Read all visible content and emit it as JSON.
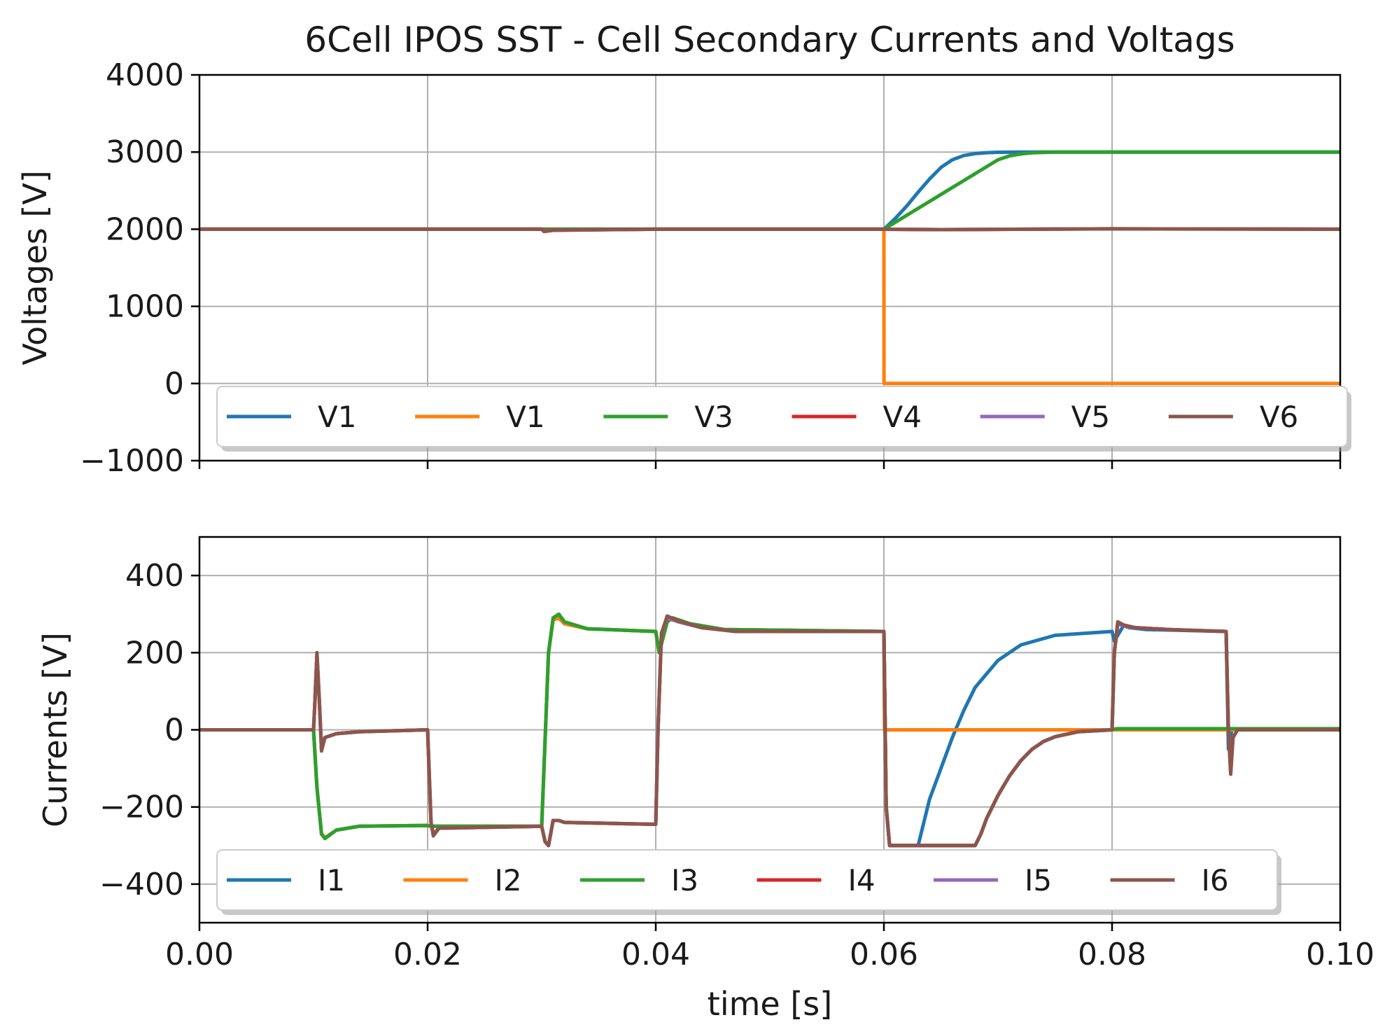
{
  "figure": {
    "title": "6Cell IPOS SST - Cell Secondary Currents and Voltags"
  },
  "chart_data": [
    {
      "type": "line",
      "id": "voltages",
      "ylabel": "Voltages [V]",
      "xlabel": "",
      "xlim": [
        0,
        0.1
      ],
      "ylim": [
        -1000,
        4000
      ],
      "xticks": [
        0,
        0.02,
        0.04,
        0.06,
        0.08,
        0.1
      ],
      "yticks": [
        -1000,
        0,
        1000,
        2000,
        3000,
        4000
      ],
      "ytick_labels": [
        "−1000",
        "0",
        "1000",
        "2000",
        "3000",
        "4000"
      ],
      "grid": true,
      "legend_position": "lower-center",
      "series": [
        {
          "name": "V1",
          "color": "#1f77b4",
          "x": [
            0,
            0.03,
            0.06,
            0.061,
            0.062,
            0.063,
            0.064,
            0.065,
            0.066,
            0.067,
            0.068,
            0.069,
            0.07,
            0.072,
            0.075,
            0.08,
            0.1
          ],
          "values": [
            2000,
            2000,
            2000,
            2140,
            2300,
            2480,
            2650,
            2800,
            2900,
            2955,
            2980,
            2992,
            2997,
            3000,
            3000,
            3000,
            3000
          ]
        },
        {
          "name": "V1",
          "color": "#ff7f0e",
          "x": [
            0,
            0.03,
            0.06,
            0.06001,
            0.1
          ],
          "values": [
            2000,
            2000,
            2000,
            0,
            0
          ]
        },
        {
          "name": "V3",
          "color": "#2ca02c",
          "x": [
            0,
            0.03,
            0.06,
            0.061,
            0.062,
            0.063,
            0.064,
            0.065,
            0.066,
            0.067,
            0.068,
            0.069,
            0.07,
            0.071,
            0.072,
            0.073,
            0.075,
            0.08,
            0.1
          ],
          "values": [
            2000,
            2000,
            2000,
            2090,
            2180,
            2270,
            2360,
            2450,
            2540,
            2630,
            2720,
            2810,
            2900,
            2950,
            2975,
            2990,
            3000,
            3000,
            3000
          ]
        },
        {
          "name": "V4",
          "color": "#d62728",
          "x": [
            0,
            0.03,
            0.0302,
            0.031,
            0.04,
            0.06,
            0.065,
            0.08,
            0.1
          ],
          "values": [
            2000,
            2000,
            1970,
            1985,
            2000,
            2000,
            1995,
            2005,
            2000
          ]
        },
        {
          "name": "V5",
          "color": "#9467bd",
          "x": [
            0,
            0.03,
            0.0302,
            0.031,
            0.04,
            0.06,
            0.065,
            0.08,
            0.1
          ],
          "values": [
            2000,
            2000,
            1975,
            1988,
            2000,
            2000,
            1995,
            2005,
            2000
          ]
        },
        {
          "name": "V6",
          "color": "#8c564b",
          "x": [
            0,
            0.03,
            0.0302,
            0.031,
            0.04,
            0.06,
            0.065,
            0.08,
            0.1
          ],
          "values": [
            2000,
            2000,
            1980,
            1990,
            2000,
            2000,
            1995,
            2005,
            2000
          ]
        }
      ]
    },
    {
      "type": "line",
      "id": "currents",
      "ylabel": "Currents [V]",
      "xlabel": "time [s]",
      "xlim": [
        0,
        0.1
      ],
      "ylim": [
        -500,
        500
      ],
      "xticks": [
        0,
        0.02,
        0.04,
        0.06,
        0.08,
        0.1
      ],
      "xtick_labels": [
        "0.00",
        "0.02",
        "0.04",
        "0.06",
        "0.08",
        "0.10"
      ],
      "yticks": [
        -400,
        -200,
        0,
        200,
        400
      ],
      "ytick_labels": [
        "−400",
        "−200",
        "0",
        "200",
        "400"
      ],
      "grid": true,
      "legend_position": "lower-center",
      "series": [
        {
          "name": "I1",
          "color": "#1f77b4",
          "x": [
            0,
            0.01,
            0.0103,
            0.0107,
            0.011,
            0.012,
            0.014,
            0.02,
            0.0203,
            0.021,
            0.03,
            0.0302,
            0.0306,
            0.031,
            0.0315,
            0.032,
            0.034,
            0.04,
            0.0403,
            0.041,
            0.0415,
            0.043,
            0.046,
            0.06,
            0.0602,
            0.0605,
            0.063,
            0.0635,
            0.064,
            0.065,
            0.066,
            0.067,
            0.068,
            0.07,
            0.072,
            0.075,
            0.08,
            0.0802,
            0.081,
            0.0815,
            0.083,
            0.09,
            0.0902,
            0.0905,
            0.091,
            0.1
          ],
          "values": [
            0,
            0,
            -150,
            -270,
            -280,
            -260,
            -250,
            -248,
            -250,
            -250,
            -250,
            -100,
            200,
            285,
            290,
            275,
            262,
            255,
            200,
            280,
            290,
            275,
            260,
            255,
            -200,
            -300,
            -300,
            -240,
            -180,
            -100,
            -20,
            50,
            110,
            180,
            220,
            245,
            255,
            230,
            270,
            265,
            260,
            255,
            -50,
            0,
            0,
            0
          ]
        },
        {
          "name": "I2",
          "color": "#ff7f0e",
          "x": [
            0,
            0.01,
            0.0103,
            0.0107,
            0.011,
            0.012,
            0.014,
            0.02,
            0.0203,
            0.021,
            0.03,
            0.0302,
            0.0306,
            0.031,
            0.0315,
            0.032,
            0.034,
            0.04,
            0.0403,
            0.041,
            0.0415,
            0.043,
            0.046,
            0.06,
            0.06005,
            0.1
          ],
          "values": [
            0,
            0,
            -150,
            -270,
            -280,
            -260,
            -250,
            -248,
            -250,
            -250,
            -250,
            -100,
            200,
            285,
            290,
            275,
            262,
            255,
            200,
            280,
            290,
            275,
            260,
            255,
            0,
            0
          ]
        },
        {
          "name": "I3",
          "color": "#2ca02c",
          "x": [
            0,
            0.01,
            0.0103,
            0.0107,
            0.011,
            0.012,
            0.014,
            0.02,
            0.0203,
            0.021,
            0.03,
            0.0302,
            0.0306,
            0.031,
            0.0315,
            0.032,
            0.034,
            0.04,
            0.0403,
            0.041,
            0.0415,
            0.043,
            0.046,
            0.06,
            0.0602,
            0.0605,
            0.068,
            0.0685,
            0.069,
            0.07,
            0.071,
            0.072,
            0.073,
            0.074,
            0.075,
            0.077,
            0.08,
            0.0802,
            0.0805,
            0.081,
            0.09,
            0.1
          ],
          "values": [
            0,
            0,
            -150,
            -270,
            -282,
            -260,
            -250,
            -248,
            -250,
            -250,
            -250,
            -100,
            200,
            290,
            300,
            280,
            262,
            255,
            200,
            280,
            290,
            275,
            260,
            255,
            -200,
            -300,
            -300,
            -270,
            -230,
            -170,
            -120,
            -80,
            -50,
            -30,
            -18,
            -5,
            0,
            2,
            3,
            3,
            3,
            3
          ]
        },
        {
          "name": "I4",
          "color": "#d62728",
          "x": [
            0,
            0.01,
            0.0101,
            0.0103,
            0.0105,
            0.0107,
            0.011,
            0.012,
            0.014,
            0.02,
            0.0203,
            0.0205,
            0.021,
            0.03,
            0.0303,
            0.0306,
            0.031,
            0.0315,
            0.032,
            0.04,
            0.0402,
            0.0405,
            0.041,
            0.042,
            0.044,
            0.047,
            0.06,
            0.0602,
            0.0605,
            0.068,
            0.0685,
            0.069,
            0.07,
            0.071,
            0.072,
            0.073,
            0.074,
            0.075,
            0.077,
            0.08,
            0.0802,
            0.0805,
            0.081,
            0.082,
            0.085,
            0.09,
            0.0902,
            0.0904,
            0.0906,
            0.091,
            0.1
          ],
          "values": [
            0,
            0,
            60,
            195,
            80,
            -50,
            -20,
            -10,
            -5,
            0,
            -240,
            -270,
            -255,
            -250,
            -290,
            -300,
            -235,
            -235,
            -240,
            -245,
            0,
            250,
            290,
            280,
            265,
            255,
            255,
            -200,
            -300,
            -300,
            -270,
            -230,
            -170,
            -120,
            -80,
            -50,
            -30,
            -18,
            -5,
            0,
            200,
            275,
            270,
            265,
            260,
            255,
            0,
            -110,
            -20,
            0,
            0
          ]
        },
        {
          "name": "I5",
          "color": "#9467bd",
          "x": [
            0,
            0.01,
            0.0101,
            0.0103,
            0.0105,
            0.0107,
            0.011,
            0.012,
            0.014,
            0.02,
            0.0203,
            0.0205,
            0.021,
            0.03,
            0.0303,
            0.0306,
            0.031,
            0.0315,
            0.032,
            0.04,
            0.0402,
            0.0405,
            0.041,
            0.042,
            0.044,
            0.047,
            0.06,
            0.0602,
            0.0605,
            0.068,
            0.0685,
            0.069,
            0.07,
            0.071,
            0.072,
            0.073,
            0.074,
            0.075,
            0.077,
            0.08,
            0.0802,
            0.0805,
            0.081,
            0.082,
            0.085,
            0.09,
            0.0902,
            0.0904,
            0.0906,
            0.091,
            0.1
          ],
          "values": [
            0,
            0,
            60,
            195,
            80,
            -50,
            -20,
            -10,
            -5,
            0,
            -240,
            -270,
            -255,
            -250,
            -290,
            -300,
            -235,
            -235,
            -240,
            -245,
            0,
            250,
            290,
            280,
            265,
            255,
            255,
            -200,
            -300,
            -300,
            -270,
            -230,
            -170,
            -120,
            -80,
            -50,
            -30,
            -18,
            -5,
            0,
            200,
            275,
            270,
            265,
            260,
            255,
            0,
            -110,
            -20,
            0,
            0
          ]
        },
        {
          "name": "I6",
          "color": "#8c564b",
          "x": [
            0,
            0.01,
            0.0101,
            0.0103,
            0.0105,
            0.0107,
            0.011,
            0.012,
            0.014,
            0.02,
            0.0203,
            0.0205,
            0.021,
            0.03,
            0.0303,
            0.0306,
            0.031,
            0.0315,
            0.032,
            0.04,
            0.0402,
            0.0405,
            0.041,
            0.042,
            0.044,
            0.047,
            0.06,
            0.0602,
            0.0605,
            0.068,
            0.0685,
            0.069,
            0.07,
            0.071,
            0.072,
            0.073,
            0.074,
            0.075,
            0.077,
            0.08,
            0.0802,
            0.0805,
            0.081,
            0.082,
            0.085,
            0.09,
            0.0902,
            0.0904,
            0.0906,
            0.091,
            0.1
          ],
          "values": [
            0,
            0,
            60,
            200,
            80,
            -55,
            -20,
            -10,
            -5,
            0,
            -240,
            -275,
            -255,
            -250,
            -290,
            -300,
            -235,
            -235,
            -240,
            -245,
            0,
            250,
            295,
            282,
            265,
            255,
            255,
            -200,
            -300,
            -300,
            -270,
            -230,
            -170,
            -120,
            -80,
            -50,
            -30,
            -18,
            -5,
            0,
            200,
            280,
            272,
            265,
            260,
            255,
            0,
            -115,
            -20,
            0,
            0
          ]
        }
      ]
    }
  ]
}
